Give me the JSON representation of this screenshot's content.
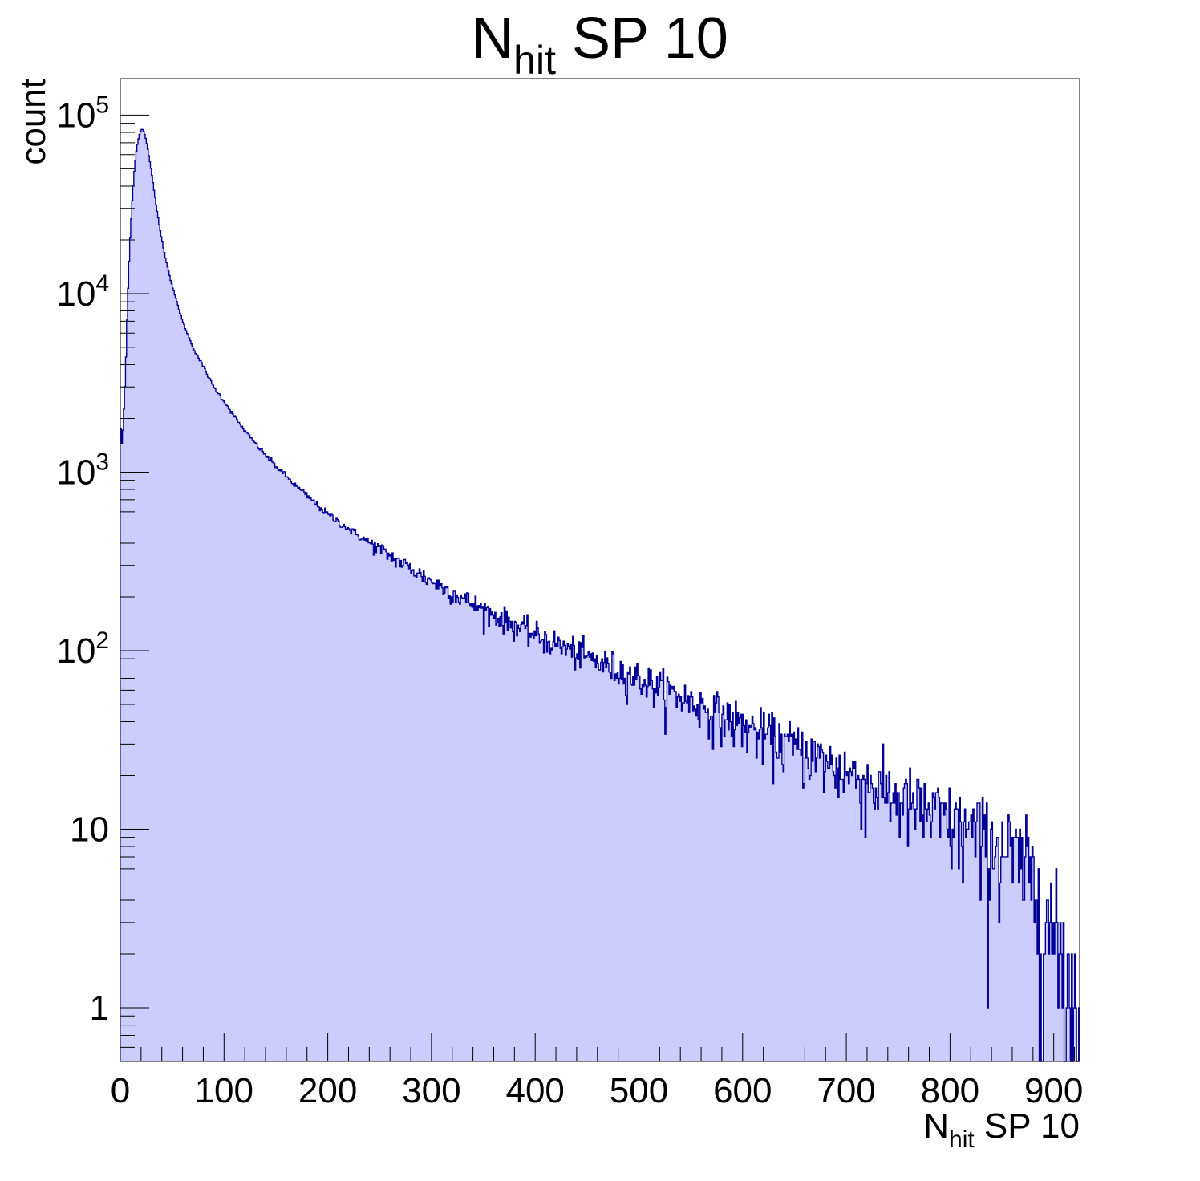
{
  "chart_data": {
    "type": "histogram",
    "title": {
      "main": "N",
      "sub": "hit",
      "rest": " SP 10"
    },
    "xlabel": {
      "main": "N",
      "sub": "hit",
      "rest": " SP 10"
    },
    "ylabel": "count",
    "xlim": [
      0,
      925
    ],
    "ylim": [
      0.5,
      160000
    ],
    "yscale": "log",
    "grid": false,
    "legend": "none",
    "x_ticks": [
      "0",
      "100",
      "200",
      "300",
      "400",
      "500",
      "600",
      "700",
      "800",
      "900"
    ],
    "y_ticks": [
      {
        "value": 1,
        "base": "1",
        "exp": ""
      },
      {
        "value": 10,
        "base": "10",
        "exp": ""
      },
      {
        "value": 100,
        "base": "10",
        "exp": "2"
      },
      {
        "value": 1000,
        "base": "10",
        "exp": "3"
      },
      {
        "value": 10000,
        "base": "10",
        "exp": "4"
      },
      {
        "value": 100000,
        "base": "10",
        "exp": "5"
      }
    ],
    "bin_width": 1,
    "series": [
      {
        "fill_color": "#ccccff",
        "line_color": "#000099",
        "points": [
          [
            0,
            2400
          ],
          [
            1,
            1300
          ],
          [
            3,
            1900
          ],
          [
            5,
            3500
          ],
          [
            7,
            9000
          ],
          [
            9,
            18000
          ],
          [
            11,
            30000
          ],
          [
            13,
            45000
          ],
          [
            15,
            60000
          ],
          [
            17,
            72000
          ],
          [
            19,
            80000
          ],
          [
            21,
            84000
          ],
          [
            23,
            80000
          ],
          [
            25,
            72000
          ],
          [
            27,
            62000
          ],
          [
            30,
            48000
          ],
          [
            35,
            30000
          ],
          [
            40,
            20000
          ],
          [
            45,
            14500
          ],
          [
            50,
            11000
          ],
          [
            60,
            7000
          ],
          [
            70,
            5000
          ],
          [
            80,
            3900
          ],
          [
            90,
            3000
          ],
          [
            100,
            2500
          ],
          [
            110,
            2050
          ],
          [
            120,
            1700
          ],
          [
            130,
            1450
          ],
          [
            140,
            1250
          ],
          [
            150,
            1080
          ],
          [
            170,
            830
          ],
          [
            200,
            580
          ],
          [
            225,
            460
          ],
          [
            250,
            370
          ],
          [
            275,
            300
          ],
          [
            300,
            245
          ],
          [
            350,
            170
          ],
          [
            400,
            122
          ],
          [
            450,
            92
          ],
          [
            500,
            70
          ],
          [
            550,
            52
          ],
          [
            600,
            38
          ],
          [
            650,
            29
          ],
          [
            700,
            21
          ],
          [
            750,
            15
          ],
          [
            800,
            11
          ],
          [
            850,
            8
          ],
          [
            875,
            6
          ],
          [
            890,
            4
          ],
          [
            900,
            2.5
          ],
          [
            915,
            1.5
          ],
          [
            925,
            1
          ]
        ]
      }
    ]
  }
}
